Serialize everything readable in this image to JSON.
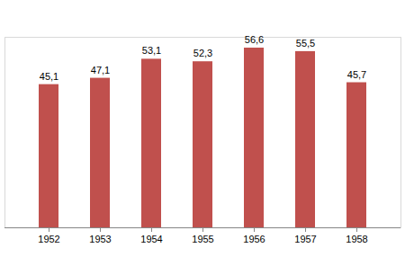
{
  "chart_data": {
    "type": "bar",
    "categories": [
      "1952",
      "1953",
      "1954",
      "1955",
      "1956",
      "1957",
      "1958"
    ],
    "values": [
      45.1,
      47.1,
      53.1,
      52.3,
      56.6,
      55.5,
      45.7
    ],
    "value_labels": [
      "45,1",
      "47,1",
      "53,1",
      "52,3",
      "56,6",
      "55,5",
      "45,7"
    ],
    "color": "#c0504d",
    "ylim": [
      0,
      60
    ],
    "grid": false,
    "data_labels": true,
    "tick_labels": "x"
  }
}
